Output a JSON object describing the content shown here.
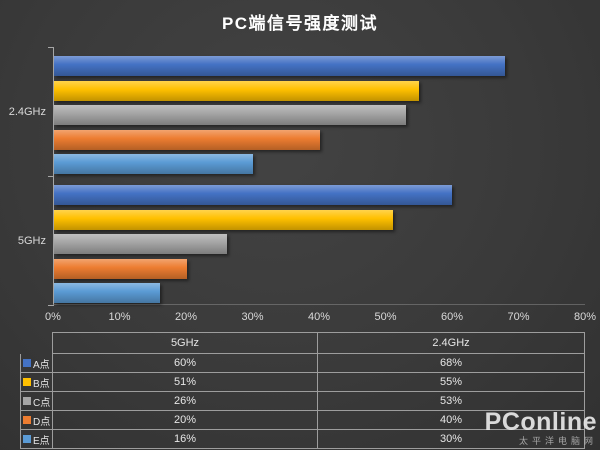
{
  "title": "PC端信号强度测试",
  "chart_data": {
    "type": "bar",
    "orientation": "horizontal",
    "title": "PC端信号强度测试",
    "categories": [
      "2.4GHz",
      "5GHz"
    ],
    "series": [
      {
        "name": "A点",
        "color": "#4472C4",
        "values": [
          68,
          60
        ]
      },
      {
        "name": "B点",
        "color": "#FFC000",
        "values": [
          55,
          51
        ]
      },
      {
        "name": "C点",
        "color": "#A5A5A5",
        "values": [
          53,
          26
        ]
      },
      {
        "name": "D点",
        "color": "#ED7D31",
        "values": [
          40,
          20
        ]
      },
      {
        "name": "E点",
        "color": "#5B9BD5",
        "values": [
          30,
          16
        ]
      }
    ],
    "x_ticks": [
      "0%",
      "10%",
      "20%",
      "30%",
      "40%",
      "50%",
      "60%",
      "70%",
      "80%"
    ],
    "xlim": [
      0,
      80
    ],
    "grid": false,
    "legend_position": "table-below"
  },
  "table": {
    "column_headers": [
      "5GHz",
      "2.4GHz"
    ],
    "rows": [
      {
        "label": "A点",
        "swatch_color": "#4472C4",
        "values": [
          "60%",
          "68%"
        ]
      },
      {
        "label": "B点",
        "swatch_color": "#FFC000",
        "values": [
          "51%",
          "55%"
        ]
      },
      {
        "label": "C点",
        "swatch_color": "#A5A5A5",
        "values": [
          "26%",
          "53%"
        ]
      },
      {
        "label": "D点",
        "swatch_color": "#ED7D31",
        "values": [
          "20%",
          "40%"
        ]
      },
      {
        "label": "E点",
        "swatch_color": "#5B9BD5",
        "values": [
          "16%",
          "30%"
        ]
      }
    ]
  },
  "watermark": {
    "text": "PConline",
    "subtext": "太平洋电脑网"
  },
  "colors": {
    "background": "#3a3a3a",
    "title_text": "#ffffff",
    "axis_text": "#d9d9d9",
    "axis_line": "#a6a6a6",
    "table_border": "#9d9d9d",
    "table_text": "#e6e6e6"
  }
}
